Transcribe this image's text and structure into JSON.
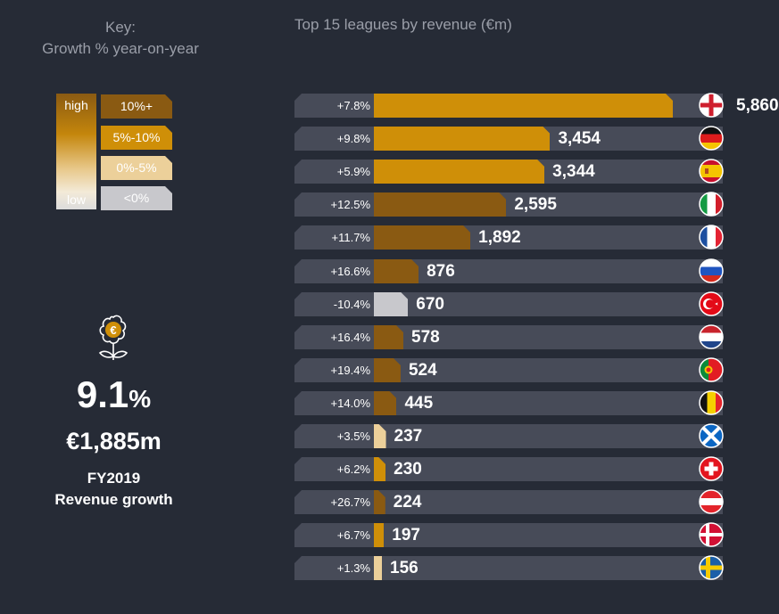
{
  "key": {
    "title_line1": "Key:",
    "title_line2": "Growth % year-on-year",
    "gradient_high": "high",
    "gradient_low": "low",
    "items": [
      {
        "label": "10%+",
        "color": "#8a5a12",
        "text_color": "#ffffff"
      },
      {
        "label": "5%-10%",
        "color": "#cf8f08",
        "text_color": "#ffffff"
      },
      {
        "label": "0%-5%",
        "color": "#ecd09a",
        "text_color": "#ffffff"
      },
      {
        "label": "<0%",
        "color": "#c8c8cc",
        "text_color": "#ffffff"
      }
    ]
  },
  "summary": {
    "icon": "money-plant-euro-icon",
    "growth_value": "9.1",
    "growth_unit": "%",
    "revenue": "€1,885m",
    "period": "FY2019",
    "caption": "Revenue growth"
  },
  "chart_data": {
    "type": "bar",
    "title": "Top 15 leagues by revenue (€m)",
    "categories": [
      "England",
      "Germany",
      "Spain",
      "Italy",
      "France",
      "Russia",
      "Turkey",
      "Netherlands",
      "Portugal",
      "Belgium",
      "Scotland",
      "Switzerland",
      "Austria",
      "Denmark",
      "Sweden"
    ],
    "values": [
      5860,
      3454,
      3344,
      2595,
      1892,
      876,
      670,
      578,
      524,
      445,
      237,
      230,
      224,
      197,
      156
    ],
    "value_labels": [
      "5,860",
      "3,454",
      "3,344",
      "2,595",
      "1,892",
      "876",
      "670",
      "578",
      "524",
      "445",
      "237",
      "230",
      "224",
      "197",
      "156"
    ],
    "growth_labels": [
      "+7.8%",
      "+9.8%",
      "+5.9%",
      "+12.5%",
      "+11.7%",
      "+16.6%",
      "-10.4%",
      "+16.4%",
      "+19.4%",
      "+14.0%",
      "+3.5%",
      "+6.2%",
      "+26.7%",
      "+6.7%",
      "+1.3%"
    ],
    "growth_band": [
      1,
      1,
      1,
      0,
      0,
      0,
      3,
      0,
      0,
      0,
      2,
      1,
      0,
      1,
      2
    ],
    "flag_icons": [
      "england-flag-icon",
      "germany-flag-icon",
      "spain-flag-icon",
      "italy-flag-icon",
      "france-flag-icon",
      "russia-flag-icon",
      "turkey-flag-icon",
      "netherlands-flag-icon",
      "portugal-flag-icon",
      "belgium-flag-icon",
      "scotland-flag-icon",
      "switzerland-flag-icon",
      "austria-flag-icon",
      "denmark-flag-icon",
      "sweden-flag-icon"
    ],
    "xlim": [
      0,
      5860
    ]
  }
}
